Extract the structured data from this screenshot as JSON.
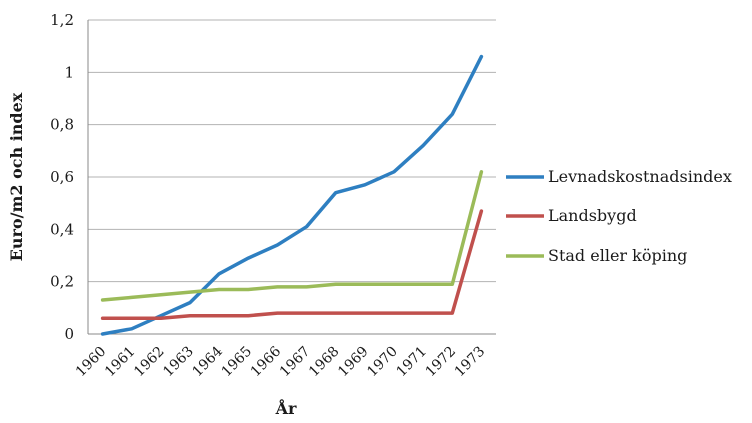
{
  "chart_data": {
    "type": "line",
    "title": "",
    "xlabel": "År",
    "ylabel": "Euro/m2 och index",
    "categories": [
      "1960",
      "1961",
      "1962",
      "1963",
      "1964",
      "1965",
      "1966",
      "1967",
      "1968",
      "1969",
      "1970",
      "1971",
      "1972",
      "1973"
    ],
    "ylim": [
      0,
      1.2
    ],
    "yticks": [
      0,
      0.2,
      0.4,
      0.6,
      0.8,
      1.0,
      1.2
    ],
    "ytick_labels": [
      "0",
      "0,2",
      "0,4",
      "0,6",
      "0,8",
      "1",
      "1,2"
    ],
    "grid": true,
    "legend_position": "right",
    "series": [
      {
        "name": "Levnadskostnadsindex",
        "color": "#2e7fc1",
        "values": [
          0.0,
          0.02,
          0.07,
          0.12,
          0.23,
          0.29,
          0.34,
          0.41,
          0.54,
          0.57,
          0.62,
          0.72,
          0.84,
          1.06
        ]
      },
      {
        "name": "Landsbygd",
        "color": "#c0504d",
        "values": [
          0.06,
          0.06,
          0.06,
          0.07,
          0.07,
          0.07,
          0.08,
          0.08,
          0.08,
          0.08,
          0.08,
          0.08,
          0.08,
          0.47
        ]
      },
      {
        "name": "Stad eller köping",
        "color": "#9bbb59",
        "values": [
          0.13,
          0.14,
          0.15,
          0.16,
          0.17,
          0.17,
          0.18,
          0.18,
          0.19,
          0.19,
          0.19,
          0.19,
          0.19,
          0.62
        ]
      }
    ]
  }
}
